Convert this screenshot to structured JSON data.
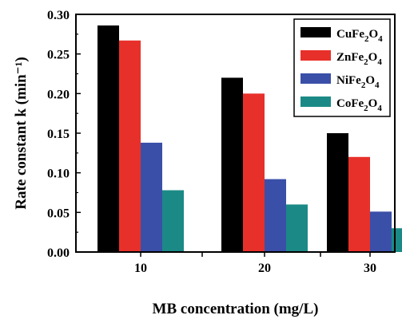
{
  "chart_data": {
    "type": "bar",
    "categories": [
      "10",
      "20",
      "30"
    ],
    "xlabel": "MB concentration (mg/L)",
    "ylabel": "Rate constant k (min⁻¹)",
    "ylim": [
      0,
      0.3
    ],
    "yticks": [
      "0.00",
      "0.05",
      "0.10",
      "0.15",
      "0.20",
      "0.25",
      "0.30"
    ],
    "legend_position": "top-right",
    "grid": false,
    "series": [
      {
        "name": "CuFe2O4",
        "base": "CuFe",
        "sub": "2",
        "tail": "O",
        "sub2": "4",
        "color": "#000000",
        "values": [
          0.286,
          0.22,
          0.15
        ]
      },
      {
        "name": "ZnFe2O4",
        "base": "ZnFe",
        "sub": "2",
        "tail": "O",
        "sub2": "4",
        "color": "#e8302a",
        "values": [
          0.267,
          0.2,
          0.12
        ]
      },
      {
        "name": "NiFe2O4",
        "base": "NiFe",
        "sub": "2",
        "tail": "O",
        "sub2": "4",
        "color": "#3a4fa8",
        "values": [
          0.138,
          0.092,
          0.051
        ]
      },
      {
        "name": "CoFe2O4",
        "base": "CoFe",
        "sub": "2",
        "tail": "O",
        "sub2": "4",
        "color": "#1b8a86",
        "values": [
          0.078,
          0.06,
          0.03
        ]
      }
    ]
  }
}
